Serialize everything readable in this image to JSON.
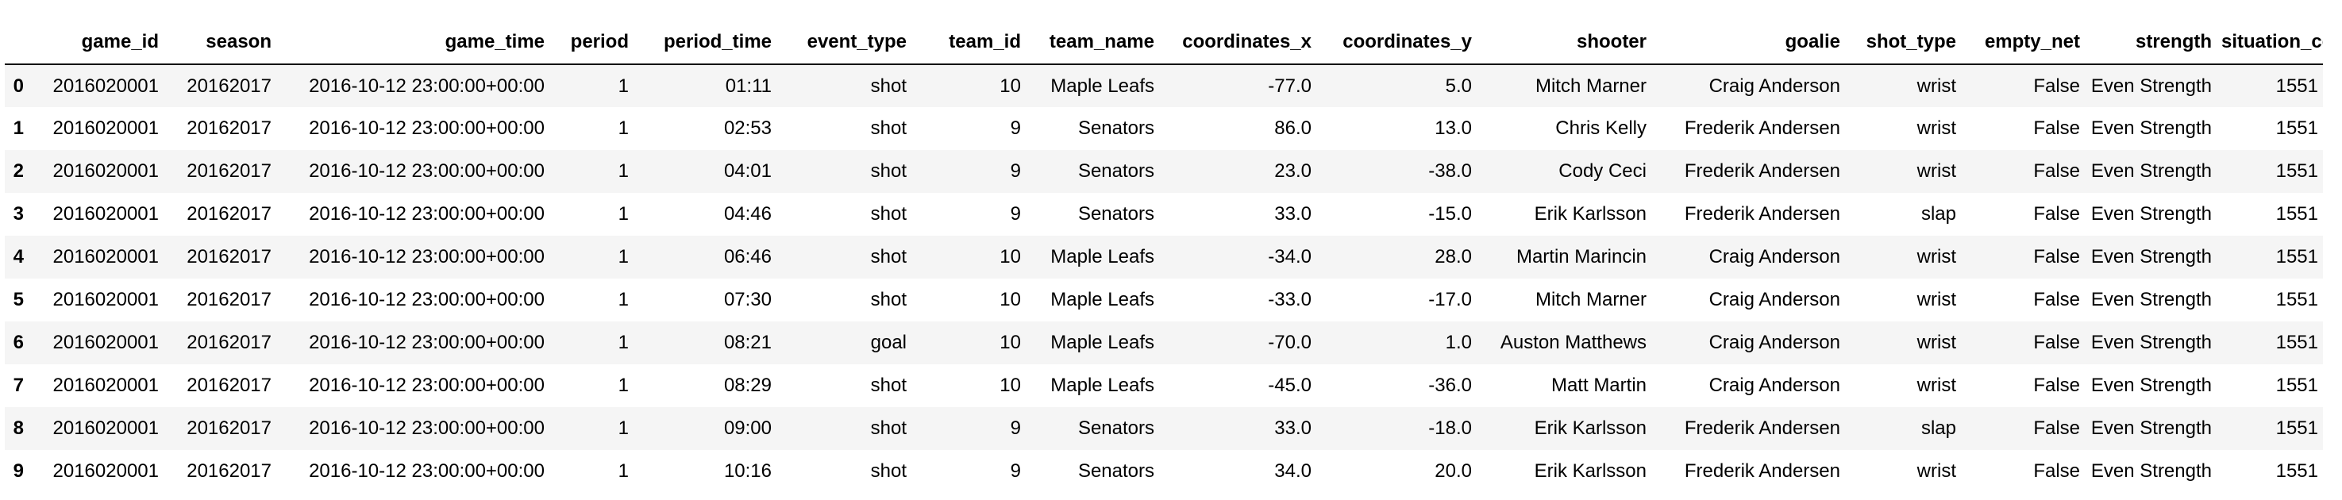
{
  "table": {
    "columns": [
      "",
      "game_id",
      "season",
      "game_time",
      "period",
      "period_time",
      "event_type",
      "team_id",
      "team_name",
      "coordinates_x",
      "coordinates_y",
      "shooter",
      "goalie",
      "shot_type",
      "empty_net",
      "strength",
      "situation_code"
    ],
    "rows": [
      [
        "0",
        "2016020001",
        "20162017",
        "2016-10-12 23:00:00+00:00",
        "1",
        "01:11",
        "shot",
        "10",
        "Maple Leafs",
        "-77.0",
        "5.0",
        "Mitch Marner",
        "Craig Anderson",
        "wrist",
        "False",
        "Even Strength",
        "1551"
      ],
      [
        "1",
        "2016020001",
        "20162017",
        "2016-10-12 23:00:00+00:00",
        "1",
        "02:53",
        "shot",
        "9",
        "Senators",
        "86.0",
        "13.0",
        "Chris Kelly",
        "Frederik Andersen",
        "wrist",
        "False",
        "Even Strength",
        "1551"
      ],
      [
        "2",
        "2016020001",
        "20162017",
        "2016-10-12 23:00:00+00:00",
        "1",
        "04:01",
        "shot",
        "9",
        "Senators",
        "23.0",
        "-38.0",
        "Cody Ceci",
        "Frederik Andersen",
        "wrist",
        "False",
        "Even Strength",
        "1551"
      ],
      [
        "3",
        "2016020001",
        "20162017",
        "2016-10-12 23:00:00+00:00",
        "1",
        "04:46",
        "shot",
        "9",
        "Senators",
        "33.0",
        "-15.0",
        "Erik Karlsson",
        "Frederik Andersen",
        "slap",
        "False",
        "Even Strength",
        "1551"
      ],
      [
        "4",
        "2016020001",
        "20162017",
        "2016-10-12 23:00:00+00:00",
        "1",
        "06:46",
        "shot",
        "10",
        "Maple Leafs",
        "-34.0",
        "28.0",
        "Martin Marincin",
        "Craig Anderson",
        "wrist",
        "False",
        "Even Strength",
        "1551"
      ],
      [
        "5",
        "2016020001",
        "20162017",
        "2016-10-12 23:00:00+00:00",
        "1",
        "07:30",
        "shot",
        "10",
        "Maple Leafs",
        "-33.0",
        "-17.0",
        "Mitch Marner",
        "Craig Anderson",
        "wrist",
        "False",
        "Even Strength",
        "1551"
      ],
      [
        "6",
        "2016020001",
        "20162017",
        "2016-10-12 23:00:00+00:00",
        "1",
        "08:21",
        "goal",
        "10",
        "Maple Leafs",
        "-70.0",
        "1.0",
        "Auston Matthews",
        "Craig Anderson",
        "wrist",
        "False",
        "Even Strength",
        "1551"
      ],
      [
        "7",
        "2016020001",
        "20162017",
        "2016-10-12 23:00:00+00:00",
        "1",
        "08:29",
        "shot",
        "10",
        "Maple Leafs",
        "-45.0",
        "-36.0",
        "Matt Martin",
        "Craig Anderson",
        "wrist",
        "False",
        "Even Strength",
        "1551"
      ],
      [
        "8",
        "2016020001",
        "20162017",
        "2016-10-12 23:00:00+00:00",
        "1",
        "09:00",
        "shot",
        "9",
        "Senators",
        "33.0",
        "-18.0",
        "Erik Karlsson",
        "Frederik Andersen",
        "slap",
        "False",
        "Even Strength",
        "1551"
      ],
      [
        "9",
        "2016020001",
        "20162017",
        "2016-10-12 23:00:00+00:00",
        "1",
        "10:16",
        "shot",
        "9",
        "Senators",
        "34.0",
        "20.0",
        "Erik Karlsson",
        "Frederik Andersen",
        "wrist",
        "False",
        "Even Strength",
        "1551"
      ]
    ]
  }
}
